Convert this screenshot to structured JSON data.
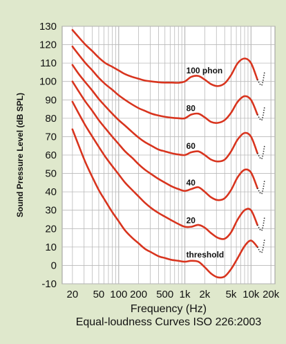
{
  "colors": {
    "background": "#dfe8cc",
    "plot_background": "#ffffff",
    "grid": "#b9b9b9",
    "curve": "#d8341e",
    "text": "#111111"
  },
  "chart_data": {
    "type": "line",
    "title": "Equal-loudness Curves ISO 226:2003",
    "xlabel": "Frequency (Hz)",
    "ylabel": "Sound Pressure Level (dB SPL)",
    "x_scale": "log",
    "xlim": [
      14,
      23000
    ],
    "ylim": [
      -10,
      130
    ],
    "grid": true,
    "x_ticks": [
      {
        "value": 20,
        "label": "20"
      },
      {
        "value": 50,
        "label": "50"
      },
      {
        "value": 100,
        "label": "100"
      },
      {
        "value": 200,
        "label": "200"
      },
      {
        "value": 500,
        "label": "500"
      },
      {
        "value": 1000,
        "label": "1k"
      },
      {
        "value": 2000,
        "label": "2k"
      },
      {
        "value": 5000,
        "label": "5k"
      },
      {
        "value": 10000,
        "label": "10k"
      },
      {
        "value": 20000,
        "label": "20k"
      }
    ],
    "y_ticks": [
      -10,
      0,
      10,
      20,
      30,
      40,
      50,
      60,
      70,
      80,
      90,
      100,
      110,
      120,
      130
    ],
    "series": [
      {
        "name": "100 phon",
        "x": [
          20,
          25,
          31.5,
          40,
          50,
          63,
          80,
          100,
          125,
          160,
          200,
          250,
          315,
          400,
          500,
          630,
          800,
          1000,
          1250,
          1600,
          2000,
          2500,
          3150,
          4000,
          5000,
          6300,
          8000,
          10000,
          12500
        ],
        "y": [
          128,
          124,
          120,
          116.5,
          113,
          110,
          108,
          106,
          104,
          102.5,
          101.5,
          100.5,
          100,
          99.6,
          99.4,
          99.4,
          99.3,
          100,
          102.5,
          103,
          101,
          98.5,
          97.5,
          99,
          103.5,
          110,
          112.5,
          110,
          101
        ]
      },
      {
        "name": "80",
        "x": [
          20,
          25,
          31.5,
          40,
          50,
          63,
          80,
          100,
          125,
          160,
          200,
          250,
          315,
          400,
          500,
          630,
          800,
          1000,
          1250,
          1600,
          2000,
          2500,
          3150,
          4000,
          5000,
          6300,
          8000,
          10000,
          12500
        ],
        "y": [
          119,
          114.5,
          110,
          106,
          102,
          98.5,
          95.5,
          92.5,
          90,
          87.5,
          85.5,
          84,
          82.5,
          81.5,
          80.8,
          80.3,
          80,
          80,
          82,
          82.5,
          80.5,
          78,
          77.5,
          79,
          83,
          89,
          92,
          90,
          82
        ]
      },
      {
        "name": "60",
        "x": [
          20,
          25,
          31.5,
          40,
          50,
          63,
          80,
          100,
          125,
          160,
          200,
          250,
          315,
          400,
          500,
          630,
          800,
          1000,
          1250,
          1600,
          2000,
          2500,
          3150,
          4000,
          5000,
          6300,
          8000,
          10000,
          12500
        ],
        "y": [
          109,
          104,
          99.5,
          95,
          90.5,
          86.5,
          82.5,
          79,
          76,
          72.5,
          69.5,
          67,
          65,
          63,
          62,
          61,
          60.3,
          60,
          61.5,
          62,
          60,
          57.5,
          56.5,
          57.5,
          62,
          68.5,
          72,
          70,
          61
        ]
      },
      {
        "name": "40",
        "x": [
          20,
          25,
          31.5,
          40,
          50,
          63,
          80,
          100,
          125,
          160,
          200,
          250,
          315,
          400,
          500,
          630,
          800,
          1000,
          1250,
          1600,
          2000,
          2500,
          3150,
          4000,
          5000,
          6300,
          8000,
          10000,
          12500
        ],
        "y": [
          100,
          94.5,
          89,
          84,
          79,
          74.5,
          70,
          66,
          62,
          58.5,
          55,
          52,
          49.5,
          47,
          45,
          43,
          41.5,
          40.5,
          41.5,
          42.5,
          40,
          37,
          35.5,
          36.5,
          41,
          48,
          52,
          50.5,
          42
        ]
      },
      {
        "name": "20",
        "x": [
          20,
          25,
          31.5,
          40,
          50,
          63,
          80,
          100,
          125,
          160,
          200,
          250,
          315,
          400,
          500,
          630,
          800,
          1000,
          1250,
          1600,
          2000,
          2500,
          3150,
          4000,
          5000,
          6300,
          8000,
          10000,
          12500
        ],
        "y": [
          89,
          82.5,
          76,
          70,
          64.5,
          59,
          54,
          49.5,
          45,
          41,
          37.5,
          34,
          31,
          28.5,
          26.5,
          24.5,
          22.5,
          21,
          21,
          22,
          20.5,
          17.5,
          15,
          14.5,
          18,
          25,
          30,
          30,
          22
        ]
      },
      {
        "name": "threshold",
        "x": [
          20,
          25,
          31.5,
          40,
          50,
          63,
          80,
          100,
          125,
          160,
          200,
          250,
          315,
          400,
          500,
          630,
          800,
          1000,
          1250,
          1600,
          2000,
          2500,
          3150,
          4000,
          5000,
          6300,
          8000,
          10000,
          12500
        ],
        "y": [
          74,
          65,
          56,
          48,
          41,
          35,
          29,
          24,
          19,
          15,
          12,
          9,
          7,
          5,
          4,
          3,
          2.5,
          2,
          2.5,
          2,
          -1,
          -4.5,
          -6.5,
          -6,
          -2,
          4,
          10.5,
          13.5,
          10
        ]
      }
    ]
  }
}
